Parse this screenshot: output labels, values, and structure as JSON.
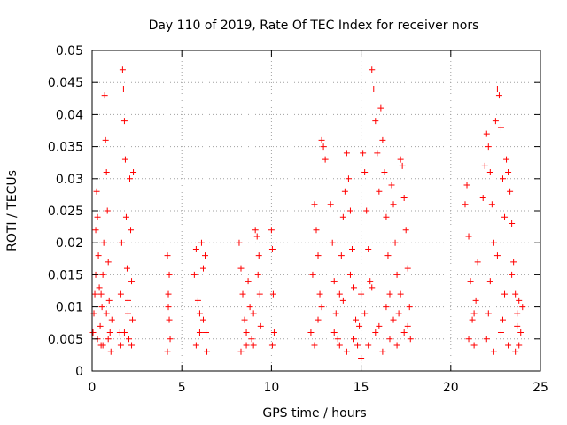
{
  "chart_data": {
    "type": "scatter",
    "title": "Day 110 of 2019, Rate Of TEC Index for receiver nors",
    "xlabel": "GPS time / hours",
    "ylabel": "ROTI / TECUs",
    "xlim": [
      0,
      25
    ],
    "ylim": [
      0,
      0.05
    ],
    "x_ticks": [
      0,
      5,
      10,
      15,
      20,
      25
    ],
    "x_tick_labels": [
      "0",
      "5",
      "10",
      "15",
      "20",
      "25"
    ],
    "y_ticks": [
      0,
      0.005,
      0.01,
      0.015,
      0.02,
      0.025,
      0.03,
      0.035,
      0.04,
      0.045,
      0.05
    ],
    "y_tick_labels": [
      "0",
      "0.005",
      "0.01",
      "0.015",
      "0.02",
      "0.025",
      "0.03",
      "0.035",
      "0.04",
      "0.045",
      "0.05"
    ],
    "grid": true,
    "marker": "+",
    "color": "#ff0000",
    "series": [
      {
        "name": "ROTI",
        "points": [
          [
            0.05,
            0.006
          ],
          [
            0.1,
            0.009
          ],
          [
            0.15,
            0.012
          ],
          [
            0.2,
            0.022
          ],
          [
            0.25,
            0.028
          ],
          [
            0.3,
            0.024
          ],
          [
            0.35,
            0.018
          ],
          [
            0.4,
            0.013
          ],
          [
            0.45,
            0.007
          ],
          [
            0.5,
            0.004
          ],
          [
            0.55,
            0.01
          ],
          [
            0.6,
            0.015
          ],
          [
            0.65,
            0.02
          ],
          [
            0.7,
            0.043
          ],
          [
            0.75,
            0.036
          ],
          [
            0.8,
            0.031
          ],
          [
            0.85,
            0.025
          ],
          [
            0.9,
            0.017
          ],
          [
            0.95,
            0.011
          ],
          [
            1.0,
            0.006
          ],
          [
            1.05,
            0.003
          ],
          [
            1.1,
            0.008
          ],
          [
            0.3,
            0.005
          ],
          [
            0.6,
            0.004
          ],
          [
            0.9,
            0.005
          ],
          [
            0.2,
            0.015
          ],
          [
            0.5,
            0.012
          ],
          [
            0.8,
            0.009
          ],
          [
            1.55,
            0.006
          ],
          [
            1.6,
            0.012
          ],
          [
            1.65,
            0.02
          ],
          [
            1.7,
            0.047
          ],
          [
            1.75,
            0.044
          ],
          [
            1.8,
            0.039
          ],
          [
            1.85,
            0.033
          ],
          [
            1.9,
            0.024
          ],
          [
            1.95,
            0.016
          ],
          [
            2.0,
            0.009
          ],
          [
            2.05,
            0.005
          ],
          [
            2.1,
            0.03
          ],
          [
            2.15,
            0.022
          ],
          [
            2.2,
            0.014
          ],
          [
            2.25,
            0.008
          ],
          [
            2.3,
            0.031
          ],
          [
            1.6,
            0.004
          ],
          [
            1.8,
            0.006
          ],
          [
            2.0,
            0.011
          ],
          [
            2.2,
            0.004
          ],
          [
            4.2,
            0.018
          ],
          [
            4.25,
            0.012
          ],
          [
            4.3,
            0.008
          ],
          [
            4.35,
            0.005
          ],
          [
            4.2,
            0.003
          ],
          [
            4.3,
            0.015
          ],
          [
            4.25,
            0.01
          ],
          [
            5.7,
            0.015
          ],
          [
            5.8,
            0.019
          ],
          [
            5.9,
            0.011
          ],
          [
            6.0,
            0.006
          ],
          [
            6.1,
            0.02
          ],
          [
            6.2,
            0.016
          ],
          [
            6.3,
            0.018
          ],
          [
            6.35,
            0.006
          ],
          [
            6.4,
            0.003
          ],
          [
            5.8,
            0.004
          ],
          [
            6.0,
            0.009
          ],
          [
            6.2,
            0.008
          ],
          [
            8.2,
            0.02
          ],
          [
            8.3,
            0.016
          ],
          [
            8.4,
            0.012
          ],
          [
            8.5,
            0.008
          ],
          [
            8.6,
            0.004
          ],
          [
            8.7,
            0.014
          ],
          [
            8.8,
            0.01
          ],
          [
            8.9,
            0.005
          ],
          [
            9.0,
            0.009
          ],
          [
            9.1,
            0.022
          ],
          [
            9.2,
            0.021
          ],
          [
            9.3,
            0.018
          ],
          [
            9.35,
            0.012
          ],
          [
            9.4,
            0.007
          ],
          [
            8.3,
            0.003
          ],
          [
            8.6,
            0.006
          ],
          [
            9.0,
            0.004
          ],
          [
            9.25,
            0.015
          ],
          [
            10.0,
            0.022
          ],
          [
            10.05,
            0.019
          ],
          [
            10.1,
            0.012
          ],
          [
            10.15,
            0.006
          ],
          [
            10.05,
            0.004
          ],
          [
            12.2,
            0.006
          ],
          [
            12.3,
            0.015
          ],
          [
            12.4,
            0.026
          ],
          [
            12.5,
            0.022
          ],
          [
            12.6,
            0.018
          ],
          [
            12.7,
            0.012
          ],
          [
            12.8,
            0.036
          ],
          [
            12.9,
            0.035
          ],
          [
            13.0,
            0.033
          ],
          [
            12.4,
            0.004
          ],
          [
            12.6,
            0.008
          ],
          [
            12.8,
            0.01
          ],
          [
            13.3,
            0.026
          ],
          [
            13.4,
            0.02
          ],
          [
            13.5,
            0.014
          ],
          [
            13.6,
            0.009
          ],
          [
            13.7,
            0.005
          ],
          [
            13.8,
            0.012
          ],
          [
            13.9,
            0.018
          ],
          [
            14.0,
            0.024
          ],
          [
            14.1,
            0.028
          ],
          [
            14.2,
            0.034
          ],
          [
            14.3,
            0.03
          ],
          [
            14.4,
            0.025
          ],
          [
            14.5,
            0.019
          ],
          [
            14.6,
            0.013
          ],
          [
            14.7,
            0.008
          ],
          [
            14.8,
            0.004
          ],
          [
            14.9,
            0.007
          ],
          [
            15.0,
            0.012
          ],
          [
            15.1,
            0.034
          ],
          [
            15.2,
            0.031
          ],
          [
            15.3,
            0.025
          ],
          [
            15.4,
            0.019
          ],
          [
            15.5,
            0.014
          ],
          [
            15.6,
            0.047
          ],
          [
            15.7,
            0.044
          ],
          [
            15.8,
            0.039
          ],
          [
            15.9,
            0.034
          ],
          [
            16.0,
            0.028
          ],
          [
            16.1,
            0.041
          ],
          [
            16.2,
            0.036
          ],
          [
            16.3,
            0.031
          ],
          [
            16.4,
            0.024
          ],
          [
            16.5,
            0.018
          ],
          [
            16.6,
            0.012
          ],
          [
            16.7,
            0.029
          ],
          [
            16.8,
            0.026
          ],
          [
            16.9,
            0.02
          ],
          [
            17.0,
            0.015
          ],
          [
            17.1,
            0.009
          ],
          [
            17.2,
            0.033
          ],
          [
            17.3,
            0.032
          ],
          [
            17.4,
            0.027
          ],
          [
            17.5,
            0.022
          ],
          [
            17.6,
            0.016
          ],
          [
            17.7,
            0.01
          ],
          [
            17.75,
            0.005
          ],
          [
            13.5,
            0.006
          ],
          [
            13.8,
            0.004
          ],
          [
            14.2,
            0.003
          ],
          [
            14.6,
            0.005
          ],
          [
            15.0,
            0.002
          ],
          [
            15.4,
            0.004
          ],
          [
            15.8,
            0.006
          ],
          [
            16.2,
            0.003
          ],
          [
            16.6,
            0.005
          ],
          [
            17.0,
            0.004
          ],
          [
            17.4,
            0.006
          ],
          [
            14.0,
            0.011
          ],
          [
            14.4,
            0.015
          ],
          [
            15.2,
            0.009
          ],
          [
            15.6,
            0.013
          ],
          [
            16.0,
            0.007
          ],
          [
            16.4,
            0.01
          ],
          [
            16.8,
            0.008
          ],
          [
            17.2,
            0.012
          ],
          [
            17.6,
            0.007
          ],
          [
            20.8,
            0.026
          ],
          [
            20.9,
            0.029
          ],
          [
            21.0,
            0.021
          ],
          [
            21.1,
            0.014
          ],
          [
            21.2,
            0.008
          ],
          [
            21.3,
            0.004
          ],
          [
            21.4,
            0.011
          ],
          [
            21.5,
            0.017
          ],
          [
            21.0,
            0.005
          ],
          [
            21.3,
            0.009
          ],
          [
            21.8,
            0.027
          ],
          [
            21.9,
            0.032
          ],
          [
            22.0,
            0.037
          ],
          [
            22.1,
            0.035
          ],
          [
            22.2,
            0.031
          ],
          [
            22.3,
            0.026
          ],
          [
            22.4,
            0.02
          ],
          [
            22.5,
            0.039
          ],
          [
            22.6,
            0.044
          ],
          [
            22.7,
            0.043
          ],
          [
            22.8,
            0.038
          ],
          [
            22.9,
            0.03
          ],
          [
            23.0,
            0.024
          ],
          [
            23.1,
            0.033
          ],
          [
            23.2,
            0.031
          ],
          [
            23.3,
            0.028
          ],
          [
            23.4,
            0.023
          ],
          [
            23.5,
            0.017
          ],
          [
            23.6,
            0.012
          ],
          [
            23.7,
            0.007
          ],
          [
            23.8,
            0.004
          ],
          [
            23.9,
            0.006
          ],
          [
            24.0,
            0.01
          ],
          [
            22.0,
            0.005
          ],
          [
            22.4,
            0.003
          ],
          [
            22.8,
            0.006
          ],
          [
            23.2,
            0.004
          ],
          [
            23.6,
            0.003
          ],
          [
            22.2,
            0.014
          ],
          [
            22.6,
            0.018
          ],
          [
            23.0,
            0.012
          ],
          [
            23.4,
            0.015
          ],
          [
            23.8,
            0.011
          ],
          [
            22.1,
            0.009
          ],
          [
            22.9,
            0.008
          ],
          [
            23.7,
            0.009
          ]
        ]
      }
    ]
  }
}
